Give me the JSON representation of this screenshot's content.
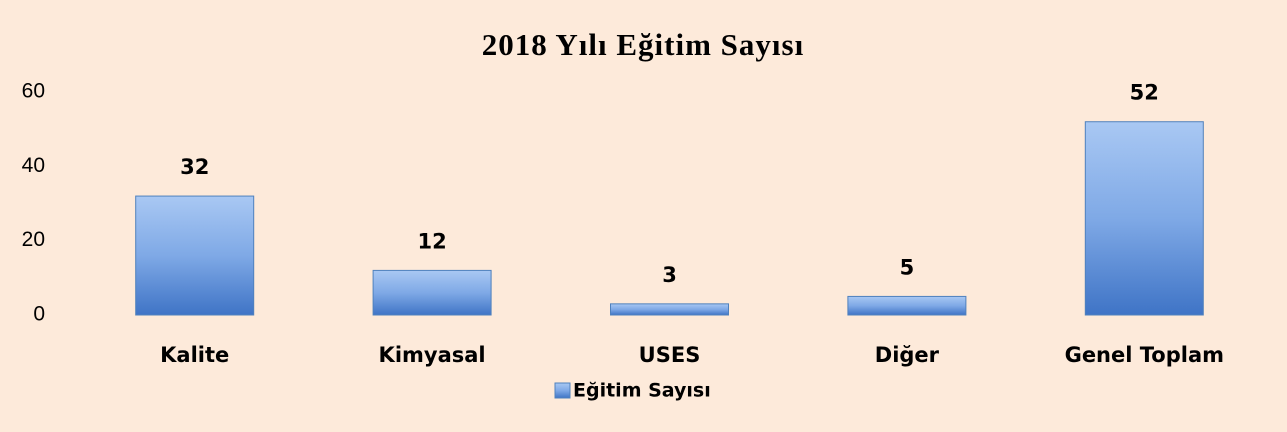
{
  "chart_data": {
    "type": "bar",
    "title": "2018 Yılı Eğitim Sayısı",
    "categories": [
      "Kalite",
      "Kimyasal",
      "USES",
      "Diğer",
      "Genel Toplam"
    ],
    "series": [
      {
        "name": "Eğitim Sayısı",
        "color": "#4f81bd",
        "values": [
          32,
          12,
          3,
          5,
          52
        ]
      }
    ],
    "ylim": [
      0,
      60
    ],
    "yticks": [
      0,
      20,
      40,
      60
    ],
    "grid": false,
    "legend": "bottom"
  }
}
